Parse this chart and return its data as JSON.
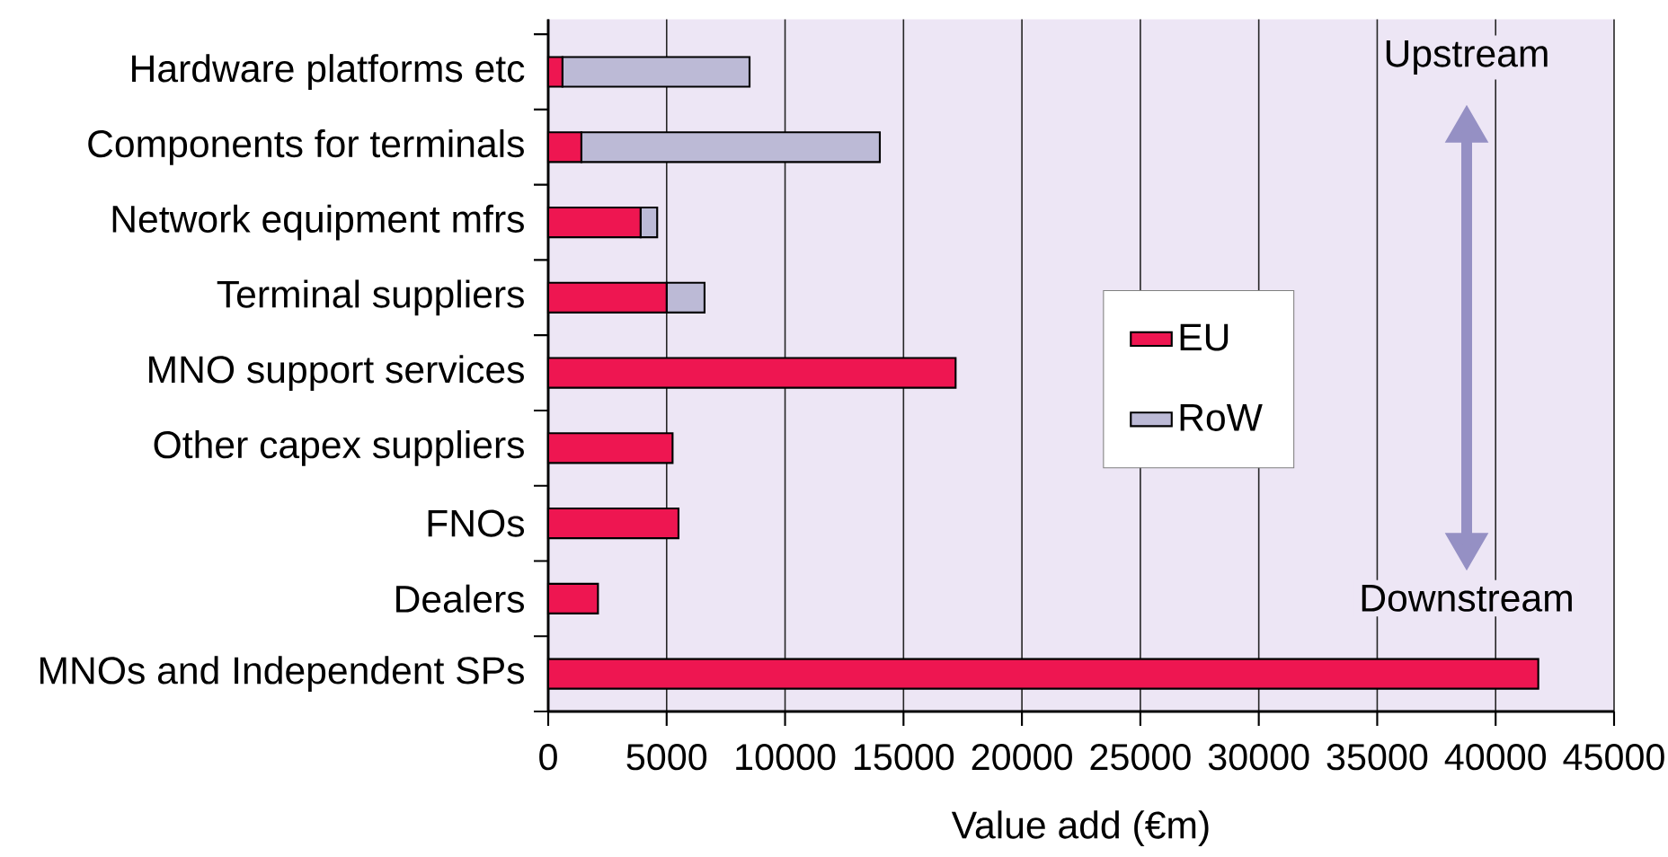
{
  "chart_data": {
    "type": "bar",
    "orientation": "horizontal",
    "stacked": true,
    "categories": [
      "Hardware platforms etc",
      "Components for terminals",
      "Network equipment mfrs",
      "Terminal suppliers",
      "MNO support services",
      "Other capex suppliers",
      "FNOs",
      "Dealers",
      "MNOs and Independent SPs"
    ],
    "series": [
      {
        "name": "EU",
        "color": "#ee1651",
        "values": [
          600,
          1400,
          3900,
          5000,
          17200,
          5250,
          5500,
          2100,
          41800
        ]
      },
      {
        "name": "RoW",
        "color": "#bcbad6",
        "values": [
          7900,
          12600,
          700,
          1600,
          null,
          null,
          null,
          null,
          null
        ]
      }
    ],
    "xlabel": "Value add (€m)",
    "xlim": [
      0,
      45000
    ],
    "xticks": [
      0,
      5000,
      10000,
      15000,
      20000,
      25000,
      30000,
      35000,
      40000,
      45000
    ],
    "grid": "x",
    "legend": "right",
    "annotations": [
      "Upstream",
      "Downstream"
    ]
  }
}
